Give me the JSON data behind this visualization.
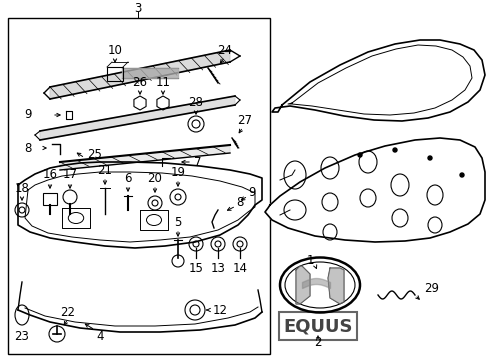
{
  "bg_color": "#ffffff",
  "fig_width": 4.89,
  "fig_height": 3.6,
  "dpi": 100,
  "line_color": "#000000",
  "text_color": "#000000",
  "font_size": 7.0
}
